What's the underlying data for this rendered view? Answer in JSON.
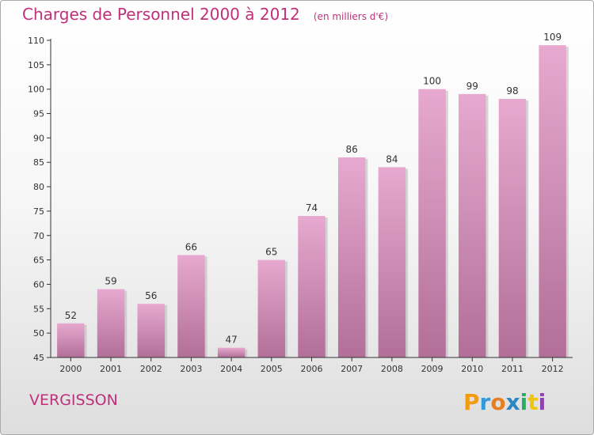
{
  "header": {
    "title": "Charges de Personnel 2000 à 2012",
    "unit": "(en milliers d'€)"
  },
  "footer": {
    "commune": "VERGISSON",
    "brand": "Proxiti"
  },
  "colors": {
    "accent": "#c0307a",
    "bar_light": "#e7a9cf",
    "bar_dark": "#b26f98",
    "axis": "#333333"
  },
  "chart_data": {
    "type": "bar",
    "categories": [
      "2000",
      "2001",
      "2002",
      "2003",
      "2004",
      "2005",
      "2006",
      "2007",
      "2008",
      "2009",
      "2010",
      "2011",
      "2012"
    ],
    "values": [
      52,
      59,
      56,
      66,
      47,
      65,
      74,
      86,
      84,
      100,
      99,
      98,
      109
    ],
    "ylim": [
      45,
      110
    ],
    "yticks": [
      45,
      50,
      55,
      60,
      65,
      70,
      75,
      80,
      85,
      90,
      95,
      100,
      105,
      110
    ],
    "grid": false,
    "legend": "none"
  }
}
